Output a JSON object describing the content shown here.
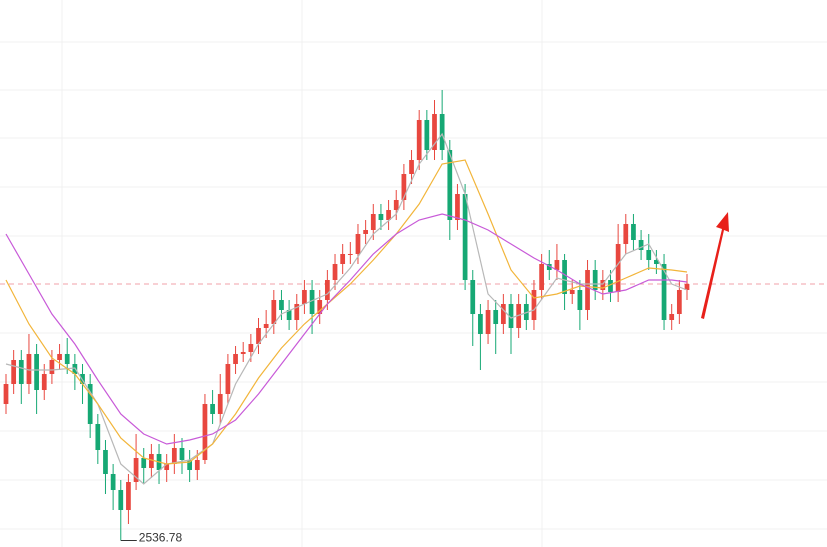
{
  "chart_data": {
    "type": "candlestick",
    "open": [
      2605,
      2615,
      2627,
      2615,
      2630,
      2612,
      2620,
      2627,
      2630,
      2625,
      2620,
      2615,
      2595,
      2582,
      2570,
      2562,
      2552,
      2566,
      2578,
      2573,
      2580,
      2572,
      2575,
      2583,
      2577,
      2572,
      2577,
      2605,
      2600,
      2610,
      2625,
      2630,
      2631,
      2635,
      2643,
      2645,
      2657,
      2652,
      2647,
      2655,
      2662,
      2650,
      2657,
      2667,
      2675,
      2680,
      2680,
      2690,
      2692,
      2700,
      2697,
      2702,
      2707,
      2720,
      2727,
      2747,
      2732,
      2750,
      2732,
      2697,
      2710,
      2667,
      2650,
      2640,
      2652,
      2645,
      2655,
      2643,
      2655,
      2647,
      2662,
      2675,
      2672,
      2677,
      2660,
      2662,
      2652,
      2672,
      2662,
      2667,
      2661,
      2685,
      2695,
      2687,
      2682,
      2677,
      2675,
      2647,
      2650,
      2662
    ],
    "high": [
      2620,
      2632,
      2632,
      2640,
      2635,
      2625,
      2632,
      2635,
      2638,
      2630,
      2625,
      2620,
      2600,
      2587,
      2575,
      2567,
      2570,
      2590,
      2583,
      2585,
      2585,
      2580,
      2590,
      2588,
      2582,
      2582,
      2610,
      2612,
      2620,
      2630,
      2634,
      2636,
      2640,
      2648,
      2652,
      2662,
      2662,
      2657,
      2660,
      2667,
      2667,
      2662,
      2672,
      2680,
      2685,
      2686,
      2695,
      2697,
      2705,
      2705,
      2707,
      2712,
      2725,
      2732,
      2752,
      2752,
      2757,
      2762,
      2737,
      2715,
      2715,
      2672,
      2655,
      2657,
      2657,
      2660,
      2660,
      2660,
      2660,
      2667,
      2680,
      2682,
      2685,
      2680,
      2667,
      2667,
      2677,
      2677,
      2672,
      2672,
      2695,
      2700,
      2700,
      2692,
      2690,
      2682,
      2680,
      2655,
      2667,
      2670
    ],
    "low": [
      2600,
      2610,
      2605,
      2610,
      2600,
      2607,
      2615,
      2622,
      2620,
      2612,
      2605,
      2588,
      2575,
      2560,
      2552,
      2536.78,
      2545,
      2562,
      2565,
      2568,
      2565,
      2566,
      2570,
      2570,
      2566,
      2567,
      2575,
      2595,
      2595,
      2605,
      2620,
      2626,
      2626,
      2630,
      2638,
      2640,
      2647,
      2642,
      2642,
      2650,
      2640,
      2645,
      2652,
      2662,
      2670,
      2675,
      2675,
      2685,
      2687,
      2692,
      2692,
      2697,
      2702,
      2715,
      2722,
      2727,
      2727,
      2727,
      2687,
      2692,
      2662,
      2634,
      2622,
      2635,
      2630,
      2640,
      2630,
      2638,
      2642,
      2642,
      2657,
      2667,
      2667,
      2652,
      2655,
      2642,
      2647,
      2657,
      2657,
      2656,
      2656,
      2680,
      2682,
      2677,
      2672,
      2670,
      2642,
      2642,
      2645,
      2657
    ],
    "close": [
      2615,
      2627,
      2615,
      2630,
      2612,
      2620,
      2627,
      2630,
      2625,
      2620,
      2615,
      2595,
      2582,
      2570,
      2562,
      2552,
      2566,
      2578,
      2573,
      2580,
      2572,
      2575,
      2583,
      2577,
      2572,
      2577,
      2605,
      2600,
      2610,
      2625,
      2630,
      2631,
      2635,
      2643,
      2645,
      2657,
      2652,
      2647,
      2655,
      2662,
      2650,
      2657,
      2667,
      2675,
      2680,
      2680,
      2690,
      2692,
      2700,
      2697,
      2702,
      2707,
      2720,
      2727,
      2747,
      2732,
      2750,
      2732,
      2697,
      2710,
      2667,
      2650,
      2640,
      2652,
      2645,
      2655,
      2643,
      2655,
      2647,
      2662,
      2675,
      2672,
      2677,
      2660,
      2662,
      2652,
      2672,
      2662,
      2667,
      2661,
      2685,
      2695,
      2687,
      2682,
      2677,
      2675,
      2647,
      2650,
      2662,
      2665
    ],
    "up_color": "#e8473f",
    "down_color": "#16a874",
    "moving_averages": [
      {
        "color": "#b8b8b8",
        "x": [
          1,
          4,
          7,
          10,
          13,
          16,
          19,
          22,
          25,
          28,
          31,
          34,
          37,
          40,
          43,
          46,
          49,
          52,
          55,
          58,
          61,
          64,
          67,
          70,
          73,
          76,
          79,
          82,
          85,
          88,
          90
        ],
        "values": [
          2625,
          2622,
          2622,
          2623,
          2605,
          2575,
          2565,
          2575,
          2577,
          2585,
          2615,
          2635,
          2650,
          2655,
          2660,
          2673,
          2690,
          2700,
          2725,
          2740,
          2710,
          2660,
          2648,
          2652,
          2668,
          2665,
          2665,
          2680,
          2685,
          2665,
          2662
        ]
      },
      {
        "color": "#f2b53a",
        "x": [
          1,
          4,
          7,
          10,
          13,
          16,
          19,
          22,
          25,
          28,
          31,
          34,
          37,
          40,
          43,
          46,
          49,
          52,
          55,
          58,
          61,
          64,
          67,
          70,
          73,
          76,
          79,
          82,
          85,
          88,
          90
        ],
        "values": [
          2667,
          2645,
          2628,
          2620,
          2605,
          2588,
          2578,
          2575,
          2576,
          2585,
          2600,
          2618,
          2633,
          2645,
          2655,
          2665,
          2677,
          2690,
          2705,
          2725,
          2727,
          2700,
          2672,
          2658,
          2660,
          2664,
          2663,
          2668,
          2673,
          2672,
          2671
        ]
      },
      {
        "color": "#c85ad8",
        "x": [
          1,
          4,
          7,
          10,
          13,
          16,
          19,
          22,
          25,
          28,
          31,
          34,
          37,
          40,
          43,
          46,
          49,
          52,
          55,
          58,
          61,
          64,
          67,
          70,
          73,
          76,
          79,
          82,
          85,
          88,
          90
        ],
        "values": [
          2690,
          2670,
          2650,
          2635,
          2617,
          2600,
          2590,
          2585,
          2587,
          2590,
          2597,
          2610,
          2625,
          2640,
          2655,
          2667,
          2680,
          2690,
          2697,
          2700,
          2697,
          2692,
          2685,
          2678,
          2672,
          2665,
          2660,
          2662,
          2667,
          2667,
          2666
        ]
      }
    ],
    "current_price_line": 2665,
    "min_label": "2536.78",
    "xlim": [
      1,
      90
    ],
    "ylim": [
      2533.5,
      2807
    ]
  }
}
